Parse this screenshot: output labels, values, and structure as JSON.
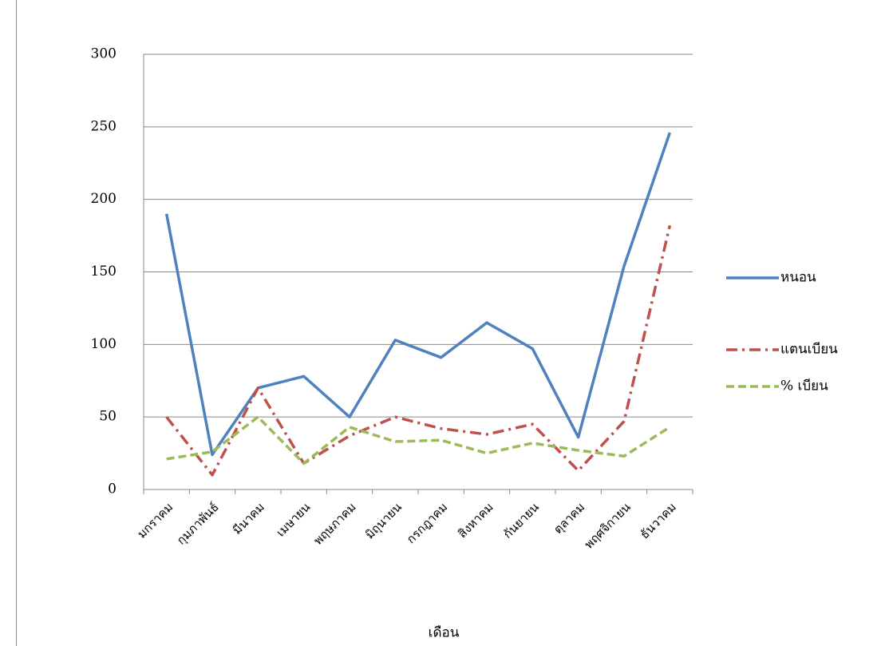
{
  "chart_data": {
    "type": "line",
    "x_label": "เดือน",
    "categories": [
      "มกราคม",
      "กุมภาพันธ์",
      "มีนาคม",
      "เมษายน",
      "พฤษภาคม",
      "มิถุนายน",
      "กรกฎาคม",
      "สิงหาคม",
      "กันยายน",
      "ตุลาคม",
      "พฤศจิกายน",
      "ธันวาคม"
    ],
    "series": [
      {
        "name": "หนอน",
        "color": "#4f81bd",
        "dash": "solid",
        "values": [
          190,
          24,
          70,
          78,
          50,
          103,
          91,
          115,
          97,
          36,
          154,
          246
        ]
      },
      {
        "name": "แตนเบียน",
        "color": "#c0504d",
        "dash": "dash-dot",
        "values": [
          50,
          10,
          70,
          18,
          37,
          50,
          42,
          38,
          45,
          13,
          47,
          182
        ]
      },
      {
        "name": "% เบียน",
        "color": "#9bbb59",
        "dash": "dash",
        "values": [
          21,
          26,
          50,
          18,
          43,
          33,
          34,
          25,
          32,
          27,
          23,
          43
        ]
      }
    ],
    "ylim": [
      0,
      300
    ],
    "yticks": [
      0,
      50,
      100,
      150,
      200,
      250,
      300
    ],
    "grid": true,
    "legend": "right"
  }
}
